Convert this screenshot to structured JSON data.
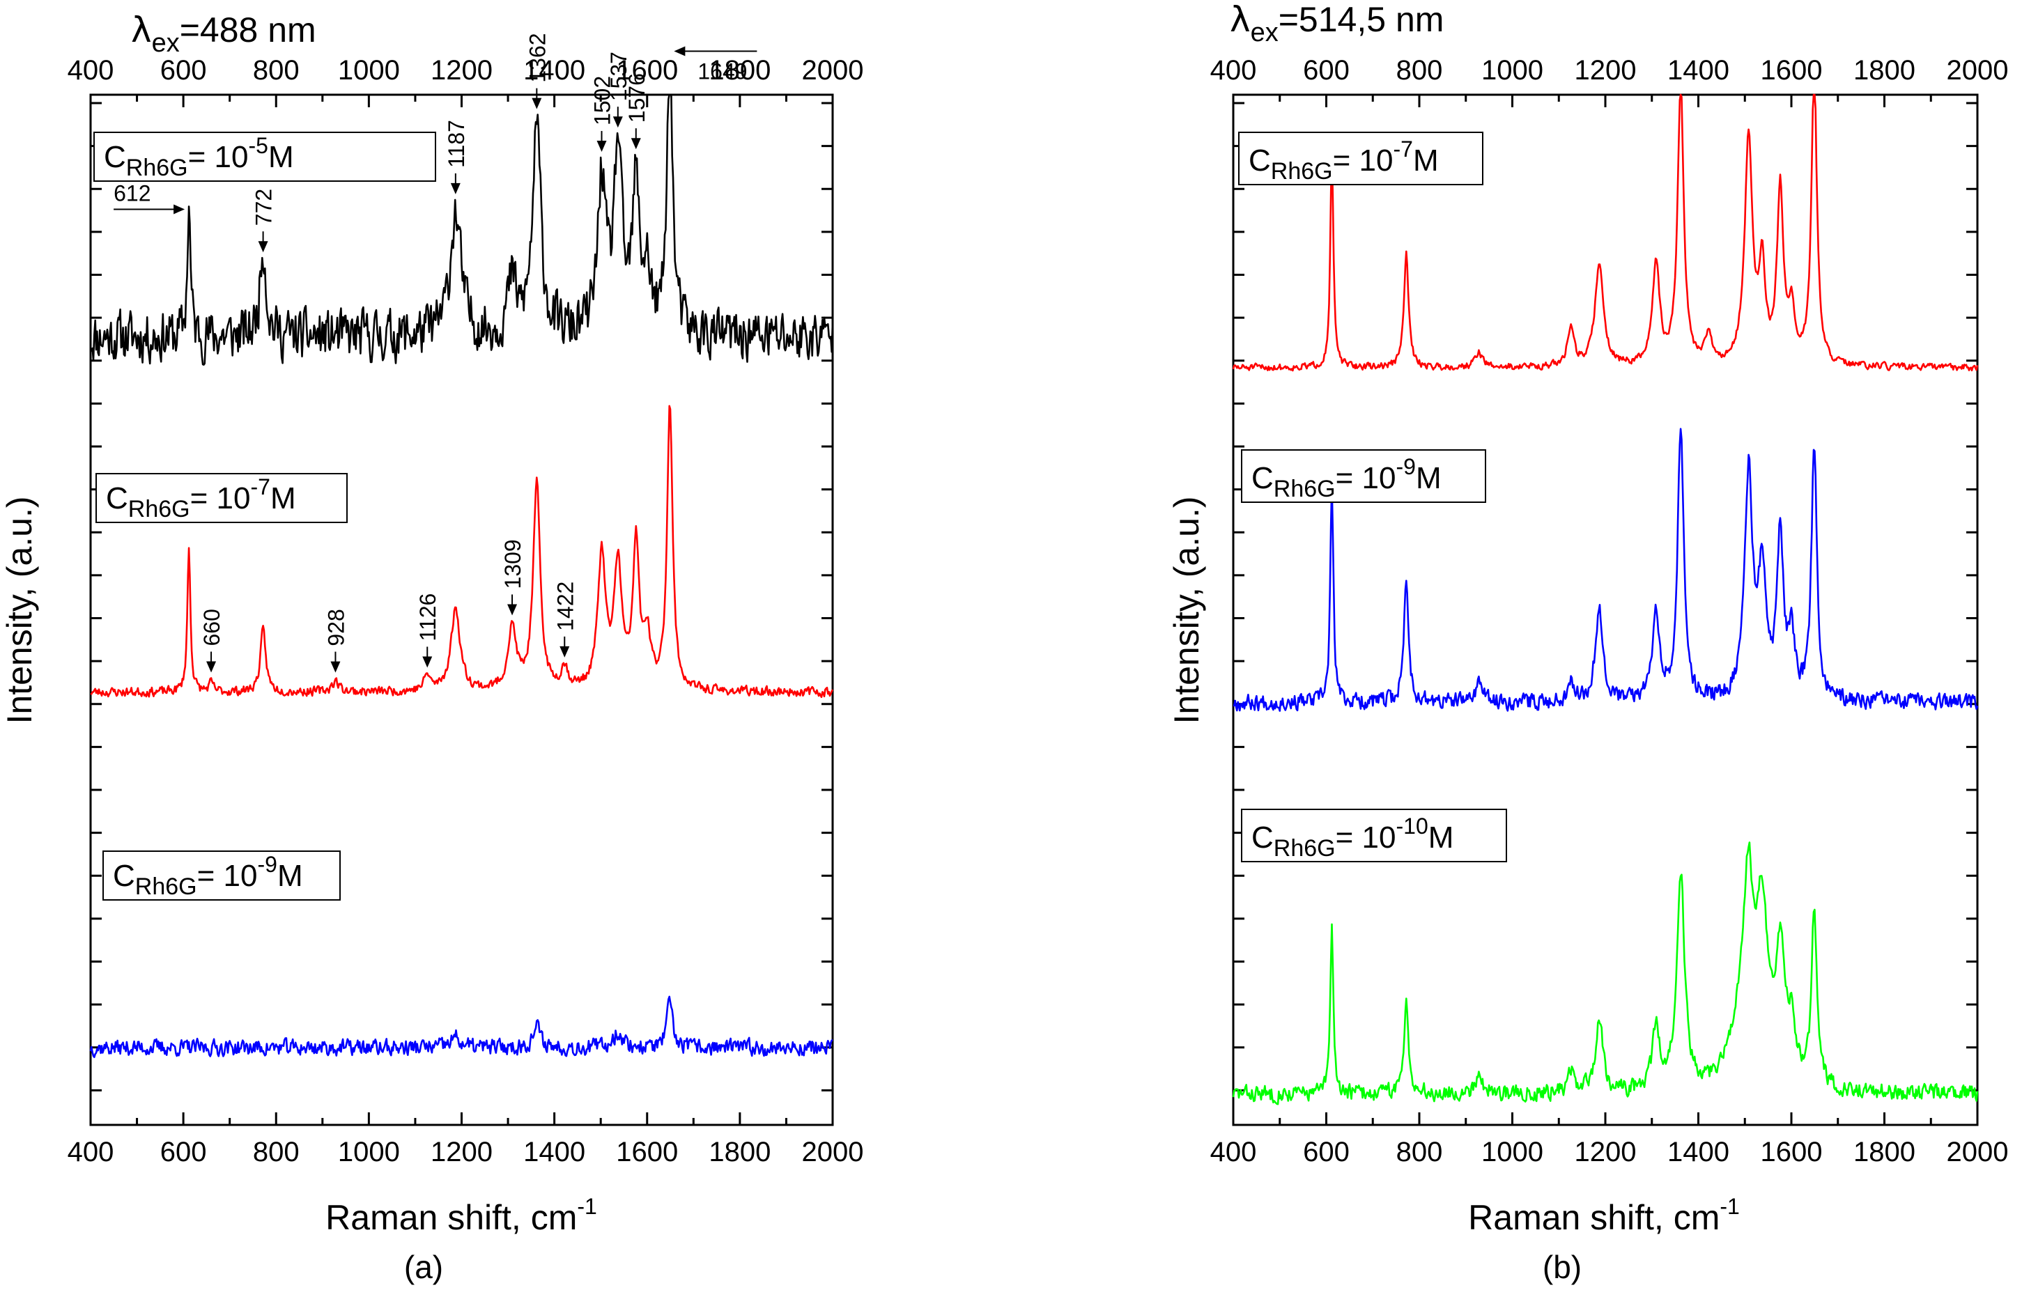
{
  "chart_data": [
    {
      "type": "line",
      "panel_label": "(a)",
      "top_label": {
        "greek": "λ",
        "sub": "ex",
        "rest": "=488 nm"
      },
      "xlabel": "Raman shift, cm",
      "xlabel_sup": "-1",
      "ylabel": "Intensity, (a.u.)",
      "xlim": [
        400,
        2000
      ],
      "xticks": [
        "400",
        "600",
        "800",
        "1000",
        "1200",
        "1400",
        "1600",
        "1800",
        "2000"
      ],
      "ylim": [
        0,
        1
      ],
      "series": [
        {
          "name": "C_Rh6G = 10^-5 M",
          "label": {
            "c": "C",
            "sub": "Rh6G",
            "mid": "= 10",
            "sup": "-5",
            "unit": "M"
          },
          "color": "#000000",
          "baseline": 0.765,
          "noise": 0.022,
          "seed": 11,
          "peaks": [
            [
              612,
              0.13,
              4
            ],
            [
              772,
              0.09,
              8
            ],
            [
              1187,
              0.12,
              14
            ],
            [
              1309,
              0.05,
              12
            ],
            [
              1362,
              0.2,
              11
            ],
            [
              1502,
              0.15,
              10
            ],
            [
              1537,
              0.18,
              10
            ],
            [
              1576,
              0.14,
              9
            ],
            [
              1600,
              0.06,
              9
            ],
            [
              1649,
              0.28,
              7
            ]
          ]
        },
        {
          "name": "C_Rh6G = 10^-7 M",
          "label": {
            "c": "C",
            "sub": "Rh6G",
            "mid": "= 10",
            "sup": "-7",
            "unit": "M"
          },
          "color": "#ff0000",
          "baseline": 0.42,
          "noise": 0.004,
          "seed": 23,
          "peaks": [
            [
              612,
              0.14,
              4
            ],
            [
              660,
              0.008,
              6
            ],
            [
              772,
              0.06,
              7
            ],
            [
              928,
              0.01,
              10
            ],
            [
              1126,
              0.015,
              8
            ],
            [
              1187,
              0.08,
              12
            ],
            [
              1309,
              0.06,
              11
            ],
            [
              1362,
              0.2,
              9
            ],
            [
              1422,
              0.02,
              9
            ],
            [
              1502,
              0.13,
              10
            ],
            [
              1537,
              0.12,
              10
            ],
            [
              1576,
              0.14,
              8
            ],
            [
              1600,
              0.05,
              9
            ],
            [
              1649,
              0.28,
              7
            ]
          ]
        },
        {
          "name": "C_Rh6G = 10^-9 M",
          "label": {
            "c": "C",
            "sub": "Rh6G",
            "mid": "= 10",
            "sup": "-9",
            "unit": "M"
          },
          "color": "#0000ff",
          "baseline": 0.075,
          "noise": 0.007,
          "seed": 37,
          "peaks": [
            [
              1187,
              0.01,
              12
            ],
            [
              1362,
              0.02,
              10
            ],
            [
              1537,
              0.015,
              12
            ],
            [
              1649,
              0.045,
              7
            ]
          ]
        }
      ],
      "annotations": [
        {
          "text": "612",
          "x": 612,
          "series": 0,
          "style": "left-arrow"
        },
        {
          "text": "772",
          "x": 772,
          "series": 0,
          "style": "down-rot"
        },
        {
          "text": "1187",
          "x": 1187,
          "series": 0,
          "style": "down-rot"
        },
        {
          "text": "1362",
          "x": 1362,
          "series": 0,
          "style": "down-rot"
        },
        {
          "text": "1502",
          "x": 1502,
          "series": 0,
          "style": "down-rot"
        },
        {
          "text": "1537",
          "x": 1537,
          "series": 0,
          "style": "down-rot"
        },
        {
          "text": "1576",
          "x": 1576,
          "series": 0,
          "style": "down-rot"
        },
        {
          "text": "1649",
          "x": 1649,
          "series": 0,
          "style": "right-arrow"
        },
        {
          "text": "660",
          "x": 660,
          "series": 1,
          "style": "down-rot"
        },
        {
          "text": "928",
          "x": 928,
          "series": 1,
          "style": "down-rot"
        },
        {
          "text": "1126",
          "x": 1126,
          "series": 1,
          "style": "down-rot"
        },
        {
          "text": "1309",
          "x": 1309,
          "series": 1,
          "style": "down-rot"
        },
        {
          "text": "1422",
          "x": 1422,
          "series": 1,
          "style": "down-rot"
        }
      ]
    },
    {
      "type": "line",
      "panel_label": "(b)",
      "top_label": {
        "greek": "λ",
        "sub": "ex",
        "rest": "=514,5 nm"
      },
      "xlabel": "Raman shift, cm",
      "xlabel_sup": "-1",
      "ylabel": "Intensity, (a.u.)",
      "xlim": [
        400,
        2000
      ],
      "xticks": [
        "400",
        "600",
        "800",
        "1000",
        "1200",
        "1400",
        "1600",
        "1800",
        "2000"
      ],
      "ylim": [
        0,
        1
      ],
      "series": [
        {
          "name": "C_Rh6G = 10^-7 M",
          "label": {
            "c": "C",
            "sub": "Rh6G",
            "mid": "= 10",
            "sup": "-7",
            "unit": "M"
          },
          "color": "#ff0000",
          "baseline": 0.735,
          "noise": 0.003,
          "seed": 51,
          "peaks": [
            [
              612,
              0.21,
              4
            ],
            [
              772,
              0.11,
              6
            ],
            [
              928,
              0.015,
              9
            ],
            [
              1126,
              0.04,
              8
            ],
            [
              1187,
              0.1,
              11
            ],
            [
              1309,
              0.1,
              9
            ],
            [
              1362,
              0.27,
              8
            ],
            [
              1422,
              0.03,
              8
            ],
            [
              1508,
              0.22,
              10
            ],
            [
              1537,
              0.09,
              8
            ],
            [
              1576,
              0.17,
              8
            ],
            [
              1600,
              0.05,
              8
            ],
            [
              1649,
              0.29,
              7
            ]
          ]
        },
        {
          "name": "C_Rh6G = 10^-9 M",
          "label": {
            "c": "C",
            "sub": "Rh6G",
            "mid": "= 10",
            "sup": "-9",
            "unit": "M"
          },
          "color": "#0000ff",
          "baseline": 0.41,
          "noise": 0.007,
          "seed": 67,
          "peaks": [
            [
              612,
              0.21,
              4
            ],
            [
              772,
              0.12,
              6
            ],
            [
              928,
              0.02,
              9
            ],
            [
              1126,
              0.02,
              8
            ],
            [
              1187,
              0.09,
              10
            ],
            [
              1309,
              0.09,
              9
            ],
            [
              1362,
              0.26,
              8
            ],
            [
              1508,
              0.22,
              10
            ],
            [
              1537,
              0.12,
              10
            ],
            [
              1576,
              0.16,
              8
            ],
            [
              1600,
              0.06,
              8
            ],
            [
              1649,
              0.25,
              7
            ]
          ]
        },
        {
          "name": "C_Rh6G = 10^-10 M",
          "label": {
            "c": "C",
            "sub": "Rh6G",
            "mid": "= 10",
            "sup": "-10",
            "unit": "M"
          },
          "color": "#00ff00",
          "baseline": 0.03,
          "noise": 0.007,
          "seed": 83,
          "peaks": [
            [
              612,
              0.16,
              4
            ],
            [
              772,
              0.09,
              6
            ],
            [
              928,
              0.02,
              9
            ],
            [
              1126,
              0.02,
              8
            ],
            [
              1187,
              0.07,
              10
            ],
            [
              1309,
              0.06,
              9
            ],
            [
              1362,
              0.21,
              10
            ],
            [
              1490,
              0.06,
              30
            ],
            [
              1508,
              0.16,
              12
            ],
            [
              1537,
              0.16,
              14
            ],
            [
              1576,
              0.12,
              12
            ],
            [
              1600,
              0.05,
              12
            ],
            [
              1649,
              0.17,
              7
            ]
          ]
        }
      ],
      "annotations": []
    }
  ]
}
